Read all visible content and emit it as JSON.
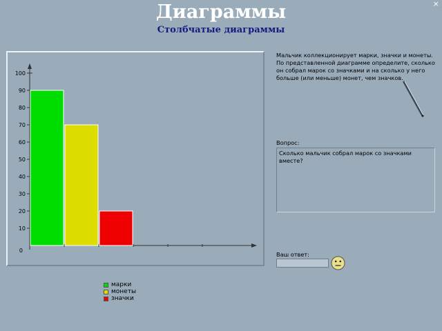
{
  "header": {
    "title": "Диаграммы",
    "subtitle": "Столбчатые диаграммы",
    "close_label": "×"
  },
  "chart_data": {
    "type": "bar",
    "categories": [
      "марки",
      "монеты",
      "значки"
    ],
    "values": [
      90,
      70,
      20
    ],
    "colors": [
      "#00dd00",
      "#dddd00",
      "#ee0000"
    ],
    "yticks": [
      0,
      10,
      20,
      30,
      40,
      50,
      60,
      70,
      80,
      90,
      100
    ],
    "ylim": [
      0,
      100
    ],
    "grid": false,
    "legend_position": "below"
  },
  "legend": [
    {
      "label": "марки",
      "color": "#00dd00"
    },
    {
      "label": "монеты",
      "color": "#dddd00"
    },
    {
      "label": "значки",
      "color": "#ee0000"
    }
  ],
  "problem": {
    "text": "Мальчик коллекционирует марки, значки и монеты. По представленной диаграмме определите, сколько он собрал марок со значками и на сколько у него больше (или меньше) монет, чем значков."
  },
  "question": {
    "label": "Вопрос:",
    "text": "Сколько  мальчик собрал марок со значками вместе?"
  },
  "answer": {
    "label": "Ваш ответ:",
    "value": ""
  },
  "icons": {
    "pen": "pen-icon",
    "smiley": "smiley-icon"
  }
}
